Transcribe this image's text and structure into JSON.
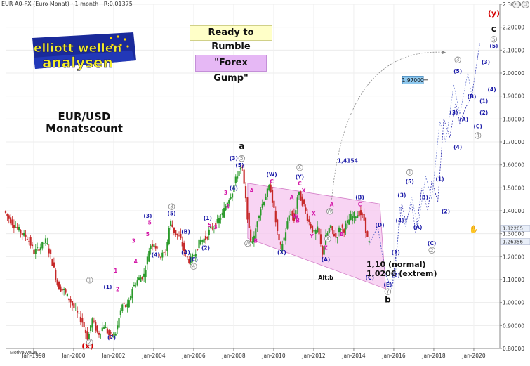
{
  "header": {
    "instrument": "EUR A0-FX (Euro Monat) · 1 month",
    "r_value": "R:0.01375",
    "buttons": [
      "close-icon",
      "maximize-icon"
    ]
  },
  "notes": {
    "ready": "Ready to Rumble",
    "forex_gump": "\"Forex Gump\"",
    "title_line1": "EUR/USD",
    "title_line2": "Monatscount",
    "target_line1": "1,10 (normal)",
    "target_line2": "1,0206 (extrem)",
    "alt_b": "Alt:b",
    "level_1_4154": "1,4154",
    "target_1_97": "1,97000",
    "footer": "MotiveWave"
  },
  "logo": {
    "line1": "elliott wellen",
    "line2": "analysen"
  },
  "colors": {
    "up_candle": "#2a9a2a",
    "down_candle": "#c62828",
    "wave_blue": "#1a1aa8",
    "wave_magenta": "#d41aa8",
    "wave_red": "#d40000",
    "wave_gray": "#8a8a8a",
    "channel_fill": "#f6c6ef",
    "channel_stroke": "#d47fc8",
    "ready_bg": "#ffffc8",
    "gump_bg": "#e6b8f5",
    "target_bg": "#8ec8ee"
  },
  "chart_data": {
    "type": "candlestick",
    "title": "EUR/USD Monatscount",
    "ylim": [
      0.8,
      2.3
    ],
    "yticks": [
      "0.80000",
      "0.90000",
      "1.00000",
      "1.10000",
      "1.20000",
      "1.30000",
      "1.40000",
      "1.50000",
      "1.60000",
      "1.70000",
      "1.80000",
      "1.90000",
      "2.00000",
      "2.10000",
      "2.20000",
      "2.30000"
    ],
    "xticks": [
      "Jan-1998",
      "Jan-2000",
      "Jan-2002",
      "Jan-2004",
      "Jan-2006",
      "Jan-2008",
      "Jan-2010",
      "Jan-2012",
      "Jan-2014",
      "Jan-2016",
      "Jan-2018",
      "Jan-2020"
    ],
    "xrange": [
      1996.6,
      2021.3
    ],
    "price_labels": {
      "current": "1.26356",
      "previous": "1.32205"
    },
    "price_path": [
      [
        1996.6,
        1.4
      ],
      [
        1996.9,
        1.36
      ],
      [
        1997.2,
        1.33
      ],
      [
        1997.5,
        1.3
      ],
      [
        1997.8,
        1.28
      ],
      [
        1998.1,
        1.22
      ],
      [
        1998.4,
        1.24
      ],
      [
        1998.7,
        1.27
      ],
      [
        1999.0,
        1.18
      ],
      [
        1999.3,
        1.07
      ],
      [
        1999.6,
        1.05
      ],
      [
        1999.9,
        1.01
      ],
      [
        2000.2,
        0.96
      ],
      [
        2000.5,
        0.92
      ],
      [
        2000.8,
        0.84
      ],
      [
        2001.0,
        0.93
      ],
      [
        2001.3,
        0.86
      ],
      [
        2001.6,
        0.9
      ],
      [
        2001.9,
        0.85
      ],
      [
        2002.2,
        0.87
      ],
      [
        2002.5,
        0.99
      ],
      [
        2002.8,
        0.98
      ],
      [
        2003.0,
        1.06
      ],
      [
        2003.3,
        1.1
      ],
      [
        2003.6,
        1.12
      ],
      [
        2003.9,
        1.25
      ],
      [
        2004.1,
        1.26
      ],
      [
        2004.4,
        1.2
      ],
      [
        2004.7,
        1.22
      ],
      [
        2004.9,
        1.36
      ],
      [
        2005.1,
        1.31
      ],
      [
        2005.4,
        1.28
      ],
      [
        2005.7,
        1.2
      ],
      [
        2005.9,
        1.18
      ],
      [
        2006.1,
        1.21
      ],
      [
        2006.4,
        1.27
      ],
      [
        2006.7,
        1.28
      ],
      [
        2006.9,
        1.32
      ],
      [
        2007.2,
        1.34
      ],
      [
        2007.5,
        1.38
      ],
      [
        2007.8,
        1.45
      ],
      [
        2008.0,
        1.48
      ],
      [
        2008.3,
        1.57
      ],
      [
        2008.5,
        1.59
      ],
      [
        2008.7,
        1.43
      ],
      [
        2008.9,
        1.27
      ],
      [
        2009.1,
        1.28
      ],
      [
        2009.3,
        1.38
      ],
      [
        2009.6,
        1.45
      ],
      [
        2009.9,
        1.51
      ],
      [
        2010.1,
        1.4
      ],
      [
        2010.4,
        1.23
      ],
      [
        2010.6,
        1.28
      ],
      [
        2010.9,
        1.4
      ],
      [
        2011.1,
        1.36
      ],
      [
        2011.3,
        1.48
      ],
      [
        2011.6,
        1.42
      ],
      [
        2011.8,
        1.36
      ],
      [
        2012.1,
        1.3
      ],
      [
        2012.3,
        1.32
      ],
      [
        2012.5,
        1.21
      ],
      [
        2012.7,
        1.29
      ],
      [
        2012.9,
        1.33
      ],
      [
        2013.2,
        1.28
      ],
      [
        2013.4,
        1.33
      ],
      [
        2013.6,
        1.32
      ],
      [
        2013.9,
        1.37
      ],
      [
        2014.1,
        1.38
      ],
      [
        2014.4,
        1.39
      ],
      [
        2014.6,
        1.36
      ],
      [
        2014.8,
        1.26
      ]
    ],
    "projection": [
      [
        2014.8,
        1.26
      ],
      [
        2015.2,
        1.33
      ],
      [
        2015.6,
        1.12
      ],
      [
        2015.9,
        1.06
      ],
      [
        2016.1,
        1.2
      ],
      [
        2016.4,
        1.43
      ],
      [
        2016.6,
        1.35
      ],
      [
        2016.9,
        1.43
      ],
      [
        2017.1,
        1.3
      ],
      [
        2017.4,
        1.5
      ],
      [
        2017.7,
        1.4
      ],
      [
        2017.9,
        1.53
      ],
      [
        2018.2,
        1.44
      ],
      [
        2018.5,
        1.8
      ],
      [
        2018.8,
        1.72
      ],
      [
        2019.1,
        1.87
      ],
      [
        2019.3,
        1.78
      ],
      [
        2019.6,
        1.85
      ],
      [
        2019.9,
        1.9
      ],
      [
        2020.3,
        2.13
      ]
    ],
    "projection_c": [
      [
        2014.8,
        1.26
      ],
      [
        2015.2,
        1.33
      ],
      [
        2015.6,
        1.12
      ],
      [
        2015.9,
        1.06
      ],
      [
        2016.1,
        1.14
      ],
      [
        2016.3,
        1.42
      ],
      [
        2016.6,
        1.33
      ],
      [
        2016.9,
        1.46
      ],
      [
        2017.2,
        1.33
      ],
      [
        2017.6,
        1.55
      ],
      [
        2017.9,
        1.45
      ],
      [
        2018.3,
        1.79
      ],
      [
        2018.6,
        1.7
      ],
      [
        2019.0,
        1.95
      ],
      [
        2019.3,
        1.82
      ],
      [
        2019.7,
        2.0
      ],
      [
        2019.9,
        1.9
      ],
      [
        2020.3,
        2.13
      ]
    ],
    "channel": [
      [
        2008.7,
        1.52
      ],
      [
        2015.3,
        1.43
      ],
      [
        2015.6,
        1.06
      ],
      [
        2008.7,
        1.28
      ]
    ],
    "arrow_target": {
      "from": [
        2012.9,
        1.45
      ],
      "to": [
        2018.6,
        2.09
      ]
    },
    "target_line": {
      "x": [
        2016.5,
        2017.7
      ],
      "y": 1.97
    },
    "wave_labels": [
      {
        "t": "(x)",
        "x": 2000.7,
        "y": 0.8,
        "c": "wave_red",
        "s": 11
      },
      {
        "t": "2",
        "x": 2000.8,
        "y": 0.82,
        "c": "wave_gray",
        "circ": 1
      },
      {
        "t": "1",
        "x": 2000.8,
        "y": 1.09,
        "c": "wave_gray",
        "circ": 1
      },
      {
        "t": "(2)",
        "x": 2001.9,
        "y": 0.84,
        "c": "wave_blue"
      },
      {
        "t": "(1)",
        "x": 2001.7,
        "y": 1.06,
        "c": "wave_blue"
      },
      {
        "t": "2",
        "x": 2002.2,
        "y": 1.05,
        "c": "wave_magenta"
      },
      {
        "t": "1",
        "x": 2002.1,
        "y": 1.13,
        "c": "wave_magenta"
      },
      {
        "t": "3",
        "x": 2003.0,
        "y": 1.26,
        "c": "wave_magenta"
      },
      {
        "t": "4",
        "x": 2003.1,
        "y": 1.17,
        "c": "wave_magenta"
      },
      {
        "t": "5",
        "x": 2003.7,
        "y": 1.29,
        "c": "wave_magenta"
      },
      {
        "t": "(3)",
        "x": 2003.7,
        "y": 1.37,
        "c": "wave_blue"
      },
      {
        "t": "5",
        "x": 2003.8,
        "y": 1.34,
        "c": "wave_magenta"
      },
      {
        "t": "(4)",
        "x": 2004.1,
        "y": 1.2,
        "c": "wave_blue"
      },
      {
        "t": "3",
        "x": 2004.9,
        "y": 1.41,
        "c": "wave_gray",
        "circ": 1
      },
      {
        "t": "(5)",
        "x": 2004.9,
        "y": 1.38,
        "c": "wave_blue"
      },
      {
        "t": "(B)",
        "x": 2005.6,
        "y": 1.3,
        "c": "wave_blue"
      },
      {
        "t": "(A)",
        "x": 2005.6,
        "y": 1.21,
        "c": "wave_blue"
      },
      {
        "t": "(C)",
        "x": 2006.0,
        "y": 1.18,
        "c": "wave_blue"
      },
      {
        "t": "4",
        "x": 2006.0,
        "y": 1.15,
        "c": "wave_gray",
        "circ": 1
      },
      {
        "t": "(2)",
        "x": 2006.6,
        "y": 1.23,
        "c": "wave_blue"
      },
      {
        "t": "(1)",
        "x": 2006.7,
        "y": 1.36,
        "c": "wave_blue"
      },
      {
        "t": "3",
        "x": 2007.1,
        "y": 1.32,
        "c": "wave_magenta"
      },
      {
        "t": "5",
        "x": 2006.8,
        "y": 1.33,
        "c": "wave_magenta"
      },
      {
        "t": "3",
        "x": 2007.6,
        "y": 1.47,
        "c": "wave_magenta"
      },
      {
        "t": "4",
        "x": 2007.7,
        "y": 1.41,
        "c": "wave_magenta"
      },
      {
        "t": "(3)",
        "x": 2008.0,
        "y": 1.62,
        "c": "wave_blue"
      },
      {
        "t": "5",
        "x": 2008.4,
        "y": 1.62,
        "c": "wave_gray",
        "circ": 1
      },
      {
        "t": "(5)",
        "x": 2008.3,
        "y": 1.59,
        "c": "wave_blue"
      },
      {
        "t": "(4)",
        "x": 2008.0,
        "y": 1.49,
        "c": "wave_blue"
      },
      {
        "t": "a",
        "x": 2008.4,
        "y": 1.67,
        "c": "#111",
        "s": 12,
        "b": 1
      },
      {
        "t": "A",
        "x": 2008.9,
        "y": 1.48,
        "c": "wave_magenta"
      },
      {
        "t": "W",
        "x": 2008.7,
        "y": 1.25,
        "c": "wave_gray",
        "circ": 1
      },
      {
        "t": "B",
        "x": 2009.1,
        "y": 1.26,
        "c": "wave_magenta"
      },
      {
        "t": "(W)",
        "x": 2009.9,
        "y": 1.55,
        "c": "wave_blue"
      },
      {
        "t": "C",
        "x": 2009.9,
        "y": 1.52,
        "c": "wave_magenta"
      },
      {
        "t": "(X)",
        "x": 2010.4,
        "y": 1.21,
        "c": "wave_blue"
      },
      {
        "t": "X",
        "x": 2011.3,
        "y": 1.58,
        "c": "wave_gray",
        "circ": 1
      },
      {
        "t": "(Y)",
        "x": 2011.3,
        "y": 1.54,
        "c": "wave_blue"
      },
      {
        "t": "C",
        "x": 2011.3,
        "y": 1.51,
        "c": "wave_magenta"
      },
      {
        "t": "X",
        "x": 2011.5,
        "y": 1.48,
        "c": "wave_magenta"
      },
      {
        "t": "A",
        "x": 2010.9,
        "y": 1.45,
        "c": "wave_magenta"
      },
      {
        "t": "W",
        "x": 2011.1,
        "y": 1.37,
        "c": "wave_magenta"
      },
      {
        "t": "X",
        "x": 2012.0,
        "y": 1.38,
        "c": "wave_magenta"
      },
      {
        "t": "B",
        "x": 2011.2,
        "y": 1.35,
        "c": "wave_magenta"
      },
      {
        "t": "Y",
        "x": 2011.9,
        "y": 1.28,
        "c": "wave_magenta"
      },
      {
        "t": "Z",
        "x": 2012.6,
        "y": 1.23,
        "c": "wave_magenta"
      },
      {
        "t": "(A)",
        "x": 2012.6,
        "y": 1.18,
        "c": "wave_blue"
      },
      {
        "t": "A",
        "x": 2012.9,
        "y": 1.42,
        "c": "wave_magenta"
      },
      {
        "t": "W",
        "x": 2012.8,
        "y": 1.39,
        "c": "wave_gray",
        "circ": 1
      },
      {
        "t": "X",
        "x": 2012.7,
        "y": 1.27,
        "c": "wave_gray",
        "circ": 1
      },
      {
        "t": "B",
        "x": 2013.4,
        "y": 1.29,
        "c": "wave_magenta"
      },
      {
        "t": "(B)",
        "x": 2014.3,
        "y": 1.45,
        "c": "wave_blue"
      },
      {
        "t": "C",
        "x": 2014.3,
        "y": 1.42,
        "c": "wave_magenta"
      },
      {
        "t": "1,4154",
        "x": 2013.7,
        "y": 1.61,
        "c": "wave_blue",
        "b": 1,
        "key": "notes.level_1_4154"
      },
      {
        "t": "(D)",
        "x": 2015.3,
        "y": 1.33,
        "c": "wave_blue"
      },
      {
        "t": "(C)",
        "x": 2014.8,
        "y": 1.1,
        "c": "wave_blue"
      },
      {
        "t": "Alt:b",
        "x": 2012.6,
        "y": 1.1,
        "c": "#111",
        "s": 8,
        "key": "notes.alt_b"
      },
      {
        "t": "(E)",
        "x": 2015.7,
        "y": 1.07,
        "c": "wave_blue"
      },
      {
        "t": "Y",
        "x": 2015.7,
        "y": 1.04,
        "c": "wave_gray",
        "circ": 1
      },
      {
        "t": "b",
        "x": 2015.7,
        "y": 1.0,
        "c": "#111",
        "s": 12,
        "b": 1
      },
      {
        "t": "(2)",
        "x": 2016.1,
        "y": 1.11,
        "c": "wave_blue"
      },
      {
        "t": "(1)",
        "x": 2016.1,
        "y": 1.21,
        "c": "wave_blue"
      },
      {
        "t": "(4)",
        "x": 2016.3,
        "y": 1.35,
        "c": "wave_blue"
      },
      {
        "t": "(3)",
        "x": 2016.4,
        "y": 1.46,
        "c": "wave_blue"
      },
      {
        "t": "1",
        "x": 2016.8,
        "y": 1.56,
        "c": "wave_gray",
        "circ": 1
      },
      {
        "t": "(5)",
        "x": 2016.8,
        "y": 1.52,
        "c": "wave_blue"
      },
      {
        "t": "(A)",
        "x": 2017.2,
        "y": 1.32,
        "c": "wave_blue"
      },
      {
        "t": "(B)",
        "x": 2017.5,
        "y": 1.45,
        "c": "wave_blue"
      },
      {
        "t": "(C)",
        "x": 2017.9,
        "y": 1.25,
        "c": "wave_blue"
      },
      {
        "t": "2",
        "x": 2017.9,
        "y": 1.22,
        "c": "wave_gray",
        "circ": 1
      },
      {
        "t": "(1)",
        "x": 2018.3,
        "y": 1.53,
        "c": "wave_blue"
      },
      {
        "t": "(2)",
        "x": 2018.6,
        "y": 1.39,
        "c": "wave_blue"
      },
      {
        "t": "(3)",
        "x": 2019.0,
        "y": 1.82,
        "c": "wave_blue"
      },
      {
        "t": "(4)",
        "x": 2019.2,
        "y": 1.67,
        "c": "wave_blue"
      },
      {
        "t": "(A)",
        "x": 2019.5,
        "y": 1.79,
        "c": "wave_blue"
      },
      {
        "t": "(B)",
        "x": 2019.9,
        "y": 1.89,
        "c": "wave_blue"
      },
      {
        "t": "3",
        "x": 2019.2,
        "y": 2.05,
        "c": "wave_gray",
        "circ": 1
      },
      {
        "t": "(5)",
        "x": 2019.2,
        "y": 2.0,
        "c": "wave_blue"
      },
      {
        "t": "(C)",
        "x": 2020.2,
        "y": 1.76,
        "c": "wave_blue"
      },
      {
        "t": "4",
        "x": 2020.2,
        "y": 1.72,
        "c": "wave_gray",
        "circ": 1
      },
      {
        "t": "(1)",
        "x": 2020.5,
        "y": 1.87,
        "c": "wave_blue"
      },
      {
        "t": "(2)",
        "x": 2020.5,
        "y": 1.82,
        "c": "wave_blue"
      },
      {
        "t": "(3)",
        "x": 2020.6,
        "y": 2.04,
        "c": "wave_blue"
      },
      {
        "t": "(4)",
        "x": 2020.9,
        "y": 1.92,
        "c": "wave_blue"
      },
      {
        "t": "(5)",
        "x": 2021.0,
        "y": 2.11,
        "c": "wave_blue"
      },
      {
        "t": "5",
        "x": 2021.0,
        "y": 2.14,
        "c": "wave_gray",
        "circ": 1
      },
      {
        "t": "c",
        "x": 2021.0,
        "y": 2.18,
        "c": "#111",
        "s": 12,
        "b": 1
      },
      {
        "t": "(y)",
        "x": 2021.0,
        "y": 2.25,
        "c": "wave_red",
        "s": 11
      }
    ]
  }
}
